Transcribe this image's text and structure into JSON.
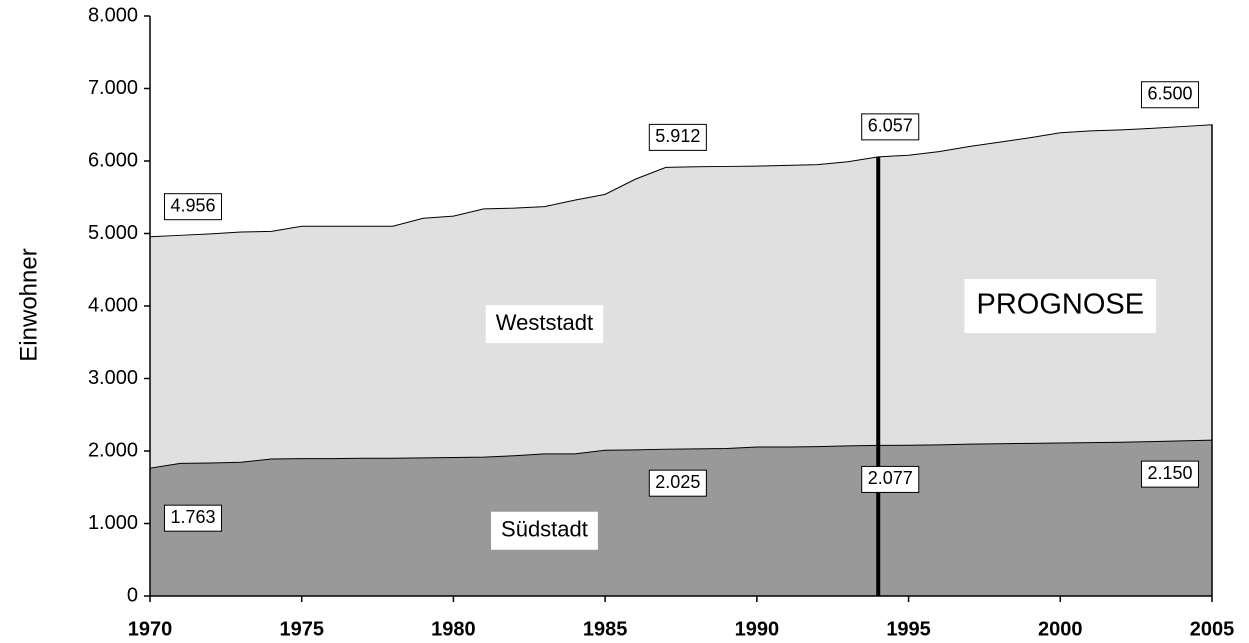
{
  "chart_data": {
    "type": "area",
    "ylabel": "Einwohner",
    "x": [
      1970,
      1971,
      1972,
      1973,
      1974,
      1975,
      1976,
      1977,
      1978,
      1979,
      1980,
      1981,
      1982,
      1983,
      1984,
      1985,
      1986,
      1987,
      1988,
      1989,
      1990,
      1991,
      1992,
      1993,
      1994,
      1995,
      1996,
      1997,
      1998,
      1999,
      2000,
      2001,
      2002,
      2003,
      2004,
      2005
    ],
    "series": [
      {
        "color": "#e0e0e0",
        "values": [
          4956,
          4975,
          4995,
          5020,
          5030,
          5100,
          5100,
          5100,
          5100,
          5210,
          5240,
          5340,
          5350,
          5370,
          5460,
          5540,
          5750,
          5912,
          5920,
          5925,
          5930,
          5940,
          5950,
          5990,
          6057,
          6080,
          6130,
          6200,
          6260,
          6320,
          6390,
          6415,
          6430,
          6450,
          6475,
          6500
        ],
        "value_labels": [
          "4.956",
          null,
          null,
          null,
          null,
          null,
          null,
          null,
          null,
          null,
          null,
          null,
          null,
          null,
          null,
          null,
          null,
          "5.912",
          null,
          null,
          null,
          null,
          null,
          null,
          "6.057",
          null,
          null,
          null,
          null,
          null,
          null,
          null,
          null,
          null,
          null,
          "6.500"
        ]
      },
      {
        "color": "#999999",
        "values": [
          1763,
          1830,
          1835,
          1845,
          1890,
          1895,
          1895,
          1900,
          1900,
          1905,
          1910,
          1915,
          1935,
          1960,
          1960,
          2010,
          2015,
          2025,
          2030,
          2035,
          2055,
          2055,
          2060,
          2070,
          2077,
          2080,
          2085,
          2095,
          2100,
          2105,
          2110,
          2115,
          2120,
          2130,
          2140,
          2150
        ],
        "value_labels": [
          "1.763",
          null,
          null,
          null,
          null,
          null,
          null,
          null,
          null,
          null,
          null,
          null,
          null,
          null,
          null,
          null,
          null,
          "2.025",
          null,
          null,
          null,
          null,
          null,
          null,
          "2.077",
          null,
          null,
          null,
          null,
          null,
          null,
          null,
          null,
          null,
          null,
          "2.150"
        ]
      }
    ],
    "annotations": [
      {
        "text": "Weststadt",
        "x": 1983,
        "y": 3750
      },
      {
        "text": "Südstadt",
        "x": 1983,
        "y": 900
      },
      {
        "text": "PROGNOSE",
        "x": 2000,
        "y": 4000
      }
    ],
    "vline": 1994,
    "xlim": [
      1970,
      2005
    ],
    "xticks": [
      1970,
      1975,
      1980,
      1985,
      1990,
      1995,
      2000,
      2005
    ],
    "ylim": [
      0,
      8000
    ],
    "yticks": [
      0,
      {
        "value": 1000,
        "label": "1.000"
      },
      {
        "value": 2000,
        "label": "2.000"
      },
      {
        "value": 3000,
        "label": "3.000"
      },
      {
        "value": 4000,
        "label": "4.000"
      },
      {
        "value": 5000,
        "label": "5.000"
      },
      {
        "value": 6000,
        "label": "6.000"
      },
      {
        "value": 7000,
        "label": "7.000"
      },
      {
        "value": 8000,
        "label": "8.000"
      }
    ]
  }
}
